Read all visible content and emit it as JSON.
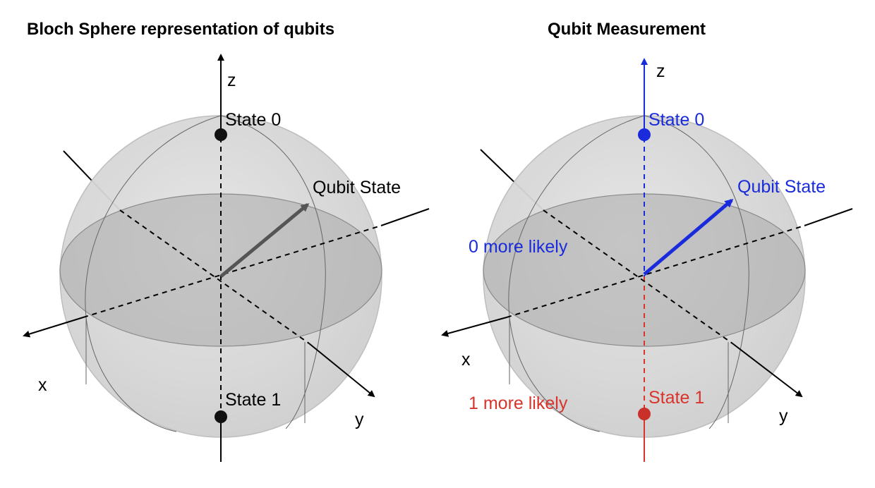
{
  "left_panel": {
    "title": "Bloch Sphere representation of qubits",
    "axis_labels": {
      "z": "z",
      "x": "x",
      "y": "y"
    },
    "state_0_label": "State 0",
    "state_1_label": "State 1",
    "vector_label": "Qubit State"
  },
  "right_panel": {
    "title": "Qubit Measurement",
    "axis_labels": {
      "z": "z",
      "x": "x",
      "y": "y"
    },
    "state_0_label": "State 0",
    "state_1_label": "State 1",
    "vector_label": "Qubit State",
    "upper_note": "0 more likely",
    "lower_note": "1 more likely"
  },
  "colors": {
    "neutral": "#555555",
    "state_0_highlight": "#1a2bdc",
    "state_1_highlight": "#d9342b",
    "sphere_fill": "#d4d4d4",
    "equator_fill": "#a9a9a9"
  }
}
